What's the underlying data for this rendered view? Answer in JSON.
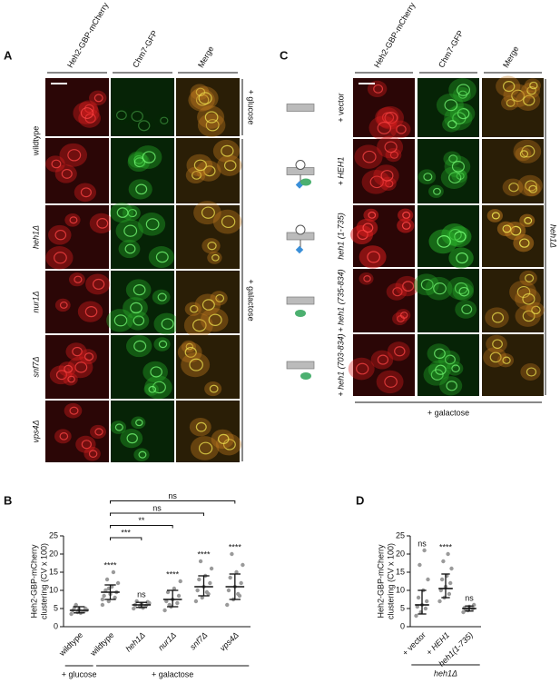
{
  "panel_a": {
    "label": "A",
    "columns": [
      "Heh2-GBP-mCherry",
      "Chm7-GFP",
      "Merge"
    ],
    "rows": [
      "wildtype",
      "heh1Δ",
      "nur1Δ",
      "snf7Δ",
      "vps4Δ"
    ],
    "conditions": [
      "+ glucose",
      "+ galactose"
    ]
  },
  "panel_c": {
    "label": "C",
    "columns": [
      "Heh2-GBP-mCherry",
      "Chm7-GFP",
      "Merge"
    ],
    "rows": [
      "+ vector",
      "+ HEH1",
      "heh1 (1-735)",
      "+ heh1 (735-834)",
      "+ heh1 (703-834)"
    ],
    "strain": "heh1Δ",
    "condition": "+ galactose"
  },
  "chart_data": [
    {
      "type": "dot",
      "panel": "B",
      "ylabel": [
        "Heh2-GBP-mCherry",
        "clustering (CV x 100)"
      ],
      "categories": [
        "wildtype",
        "wildtype",
        "heh1Δ",
        "nur1Δ",
        "snf7Δ",
        "vps4Δ"
      ],
      "group_labels": [
        "+ glucose",
        "+ galactose"
      ],
      "ylim": [
        0,
        25
      ],
      "yticks": [
        0,
        5,
        10,
        15,
        20,
        25
      ],
      "significance": [
        null,
        "****",
        "ns",
        "****",
        "****",
        "****"
      ],
      "comparisons": [
        "***",
        "**",
        "ns",
        "ns"
      ],
      "groups": [
        {
          "median": 4.5,
          "error": [
            3.8,
            5.5
          ],
          "points": [
            3.5,
            4,
            4.2,
            4.5,
            4.8,
            5,
            5.3,
            3.8,
            4.6,
            6
          ]
        },
        {
          "median": 9.5,
          "error": [
            7.5,
            11.5
          ],
          "points": [
            6,
            7,
            8,
            8.5,
            9,
            9.5,
            10,
            11,
            12,
            13,
            15,
            7.5,
            10.5
          ]
        },
        {
          "median": 6,
          "error": [
            5.3,
            6.7
          ],
          "points": [
            5,
            5.5,
            5.8,
            6,
            6.3,
            6.8,
            7,
            5.2,
            6.5
          ]
        },
        {
          "median": 7.5,
          "error": [
            5.5,
            10
          ],
          "points": [
            4.5,
            5.5,
            6.5,
            7,
            7.5,
            8.5,
            9.5,
            10.5,
            12.5,
            6
          ]
        },
        {
          "median": 11,
          "error": [
            8.5,
            14
          ],
          "points": [
            7,
            8,
            9,
            10,
            11,
            12,
            13,
            14,
            16,
            18,
            9.5
          ]
        },
        {
          "median": 11,
          "error": [
            7.5,
            14.5
          ],
          "points": [
            6,
            7.5,
            8.5,
            10,
            11,
            12,
            13.5,
            15,
            17,
            20,
            9
          ]
        }
      ]
    },
    {
      "type": "dot",
      "panel": "D",
      "ylabel": [
        "Heh2-GBP-mCherry",
        "clustering (CV x 100)"
      ],
      "categories": [
        "+ vector",
        "+ HEH1",
        "heh1(1-735)"
      ],
      "group_labels": [
        "heh1Δ"
      ],
      "ylim": [
        0,
        25
      ],
      "yticks": [
        0,
        5,
        10,
        15,
        20,
        25
      ],
      "significance": [
        "ns",
        "****",
        "ns"
      ],
      "groups": [
        {
          "median": 6,
          "error": [
            3.5,
            10
          ],
          "points": [
            3,
            4,
            5,
            5.5,
            6,
            7,
            8,
            10,
            13,
            17,
            21
          ]
        },
        {
          "median": 10.5,
          "error": [
            8,
            14.5
          ],
          "points": [
            7,
            8,
            9,
            10,
            11,
            12,
            13,
            14,
            16,
            18,
            20
          ]
        },
        {
          "median": 5,
          "error": [
            4.3,
            5.7
          ],
          "points": [
            4,
            4.5,
            5,
            5.2,
            5.5,
            6,
            4.8
          ]
        }
      ]
    }
  ]
}
